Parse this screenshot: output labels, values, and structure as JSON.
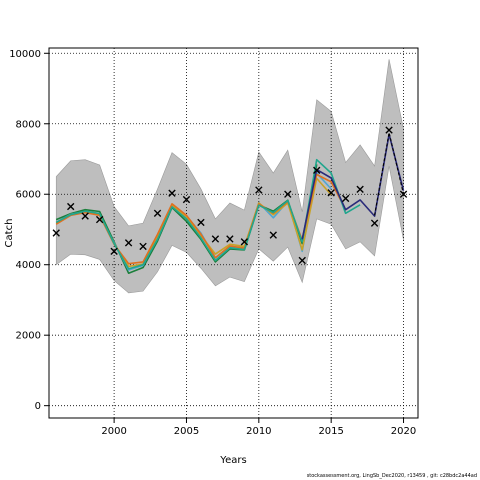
{
  "chart_data": {
    "type": "line",
    "xlabel": "Years",
    "ylabel": "Catch",
    "xlim": [
      1995.5,
      2021
    ],
    "ylim": [
      -350,
      10150
    ],
    "x_ticks": [
      2000,
      2005,
      2010,
      2015,
      2020
    ],
    "y_ticks": [
      0,
      2000,
      4000,
      6000,
      8000,
      10000
    ],
    "grid": "dotted",
    "colors": {
      "band": "#bebebe",
      "observed_marker": "#000000",
      "line_palette": [
        "#1b7f3b",
        "#4ea6d4",
        "#c9a227",
        "#e07020",
        "#21a68d",
        "#2a2a7a",
        "#000000"
      ]
    },
    "observed": {
      "marker": "x",
      "x": [
        1996,
        1997,
        1998,
        1999,
        2000,
        2001,
        2002,
        2003,
        2004,
        2005,
        2006,
        2007,
        2008,
        2009,
        2010,
        2011,
        2012,
        2013,
        2014,
        2015,
        2016,
        2017,
        2018,
        2019,
        2020
      ],
      "y": [
        4900,
        5650,
        5380,
        5280,
        4380,
        4620,
        4520,
        5460,
        6030,
        5850,
        5200,
        4730,
        4730,
        4650,
        6120,
        4840,
        6000,
        4120,
        6680,
        6040,
        5880,
        6140,
        5180,
        7820,
        6000
      ]
    },
    "band": {
      "x": [
        1996,
        1997,
        1998,
        1999,
        2000,
        2001,
        2002,
        2003,
        2004,
        2005,
        2006,
        2007,
        2008,
        2009,
        2010,
        2011,
        2012,
        2013,
        2014,
        2015,
        2016,
        2017,
        2018,
        2019,
        2020
      ],
      "lower": [
        4000,
        4300,
        4280,
        4150,
        3550,
        3200,
        3250,
        3800,
        4550,
        4350,
        3900,
        3400,
        3650,
        3520,
        4450,
        4100,
        4500,
        3500,
        5300,
        5150,
        4450,
        4650,
        4250,
        6800,
        4700
      ],
      "upper": [
        6500,
        6950,
        6980,
        6830,
        5650,
        5100,
        5180,
        6150,
        7180,
        6850,
        6150,
        5300,
        5750,
        5550,
        7200,
        6600,
        7250,
        5500,
        8680,
        8350,
        6900,
        7400,
        6800,
        9830,
        7850
      ]
    },
    "series": [
      {
        "x": [
          1996,
          1997,
          1998,
          1999,
          2000,
          2001,
          2002,
          2003,
          2004,
          2005,
          2006,
          2007,
          2008,
          2009,
          2010,
          2011,
          2012,
          2013,
          2014
        ],
        "y": [
          5280,
          5450,
          5560,
          5510,
          4650,
          3760,
          3920,
          4670,
          5620,
          5230,
          4720,
          4080,
          4450,
          4420,
          5700,
          5520,
          5830,
          4600,
          6850
        ]
      },
      {
        "x": [
          1996,
          1997,
          1998,
          1999,
          2000,
          2001,
          2002,
          2003,
          2004,
          2005,
          2006,
          2007,
          2008,
          2009,
          2010,
          2011,
          2012,
          2013,
          2014,
          2015
        ],
        "y": [
          5200,
          5430,
          5510,
          5400,
          4620,
          3850,
          3980,
          4760,
          5650,
          5380,
          4900,
          4190,
          4520,
          4480,
          5760,
          5330,
          5800,
          4380,
          6600,
          6150
        ]
      },
      {
        "x": [
          1996,
          1997,
          1998,
          1999,
          2000,
          2001,
          2002,
          2003,
          2004,
          2005,
          2006,
          2007,
          2008,
          2009,
          2010,
          2011,
          2012,
          2013,
          2014,
          2015
        ],
        "y": [
          5180,
          5420,
          5500,
          5430,
          4600,
          3950,
          4020,
          4820,
          5700,
          5350,
          4830,
          4300,
          4580,
          4520,
          5750,
          5420,
          5750,
          4420,
          6450,
          5980
        ]
      },
      {
        "x": [
          1996,
          1997,
          1998,
          1999,
          2000,
          2001,
          2002,
          2003,
          2004,
          2005,
          2006,
          2007,
          2008,
          2009,
          2010,
          2011,
          2012,
          2013,
          2014,
          2015,
          2016
        ],
        "y": [
          5150,
          5400,
          5480,
          5400,
          4580,
          4030,
          4080,
          4860,
          5730,
          5400,
          4870,
          4200,
          4530,
          4470,
          5720,
          5460,
          5790,
          4700,
          6560,
          6350,
          5560
        ]
      },
      {
        "x": [
          1996,
          1997,
          1998,
          1999,
          2000,
          2001,
          2002,
          2003,
          2004,
          2005,
          2006,
          2007,
          2008,
          2009,
          2010,
          2011,
          2012,
          2013,
          2014,
          2015,
          2016,
          2017
        ],
        "y": [
          5200,
          5420,
          5520,
          5450,
          4600,
          3880,
          4000,
          4720,
          5640,
          5300,
          4760,
          4120,
          4480,
          4430,
          5690,
          5480,
          5820,
          4650,
          6980,
          6600,
          5460,
          5700
        ]
      },
      {
        "x": [
          2013,
          2014,
          2015,
          2016,
          2017,
          2018,
          2019,
          2020
        ],
        "y": [
          4720,
          6700,
          6460,
          5560,
          5840,
          5380,
          7700,
          6100
        ]
      },
      {
        "x": [
          2018,
          2019,
          2020
        ],
        "y": [
          5400,
          7750,
          6000
        ],
        "dashed": true
      }
    ]
  },
  "footer_text": "stockassessment.org, LingSb_Dec2020, r13459 , git: c28bdc2a44ad"
}
